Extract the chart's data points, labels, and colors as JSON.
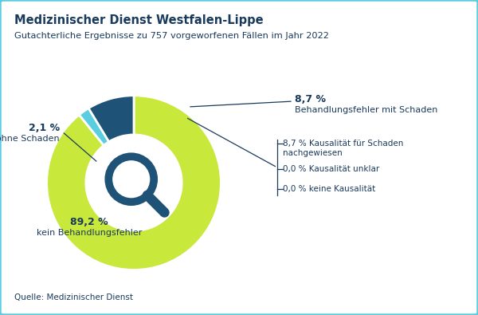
{
  "title_bold": "Medizinischer Dienst Westfalen-Lippe",
  "title_sub": "Gutachterliche Ergebnisse zu 757 vorgeworfenen Fällen im Jahr 2022",
  "source": "Quelle: Medizinischer Dienst",
  "background_color": "#ffffff",
  "border_color": "#5bcde0",
  "slices": [
    {
      "label": "kein Behandlungsfehler",
      "value": 89.2,
      "color": "#c8e83c",
      "pct_label": "89,2 %"
    },
    {
      "label": "Fehler ohne Schaden",
      "value": 2.1,
      "color": "#5bcde0",
      "pct_label": "2,1 %"
    },
    {
      "label": "Behandlungsfehler mit Schaden",
      "value": 8.7,
      "color": "#1e5276",
      "pct_label": "8,7 %"
    }
  ],
  "sub_annotations": [
    "8,7 % Kausalität für Schaden\nnachgewiesen",
    "0,0 % Kausalität unklar",
    "0,0 % keine Kausalität"
  ],
  "title_color": "#1a3a5c",
  "label_color": "#1a3a5c",
  "donut_inner_r": 0.55,
  "donut_outer_r": 1.0,
  "start_angle": 90
}
